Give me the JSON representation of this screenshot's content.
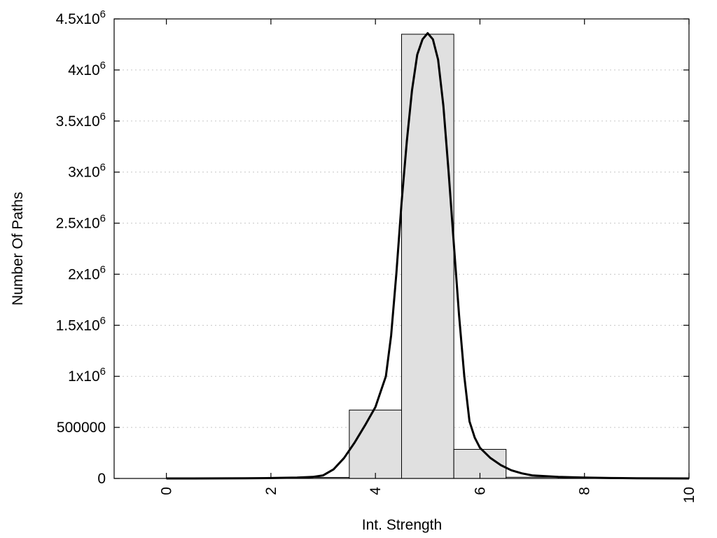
{
  "chart_data": {
    "type": "bar",
    "xlabel": "Int. Strength",
    "ylabel": "Number Of Paths",
    "xlim": [
      -1,
      10
    ],
    "ylim": [
      0,
      4500000
    ],
    "grid": true,
    "x_ticks": [
      {
        "value": 0,
        "label": "0"
      },
      {
        "value": 2,
        "label": "2"
      },
      {
        "value": 4,
        "label": "4"
      },
      {
        "value": 6,
        "label": "6"
      },
      {
        "value": 8,
        "label": "8"
      },
      {
        "value": 10,
        "label": "10"
      }
    ],
    "y_ticks": [
      {
        "value": 0,
        "label": "0",
        "mantissa": "0",
        "exp": ""
      },
      {
        "value": 500000,
        "label": "500000",
        "mantissa": "500000",
        "exp": ""
      },
      {
        "value": 1000000,
        "label": "1x10^6",
        "mantissa": "1x10",
        "exp": "6"
      },
      {
        "value": 1500000,
        "label": "1.5x10^6",
        "mantissa": "1.5x10",
        "exp": "6"
      },
      {
        "value": 2000000,
        "label": "2x10^6",
        "mantissa": "2x10",
        "exp": "6"
      },
      {
        "value": 2500000,
        "label": "2.5x10^6",
        "mantissa": "2.5x10",
        "exp": "6"
      },
      {
        "value": 3000000,
        "label": "3x10^6",
        "mantissa": "3x10",
        "exp": "6"
      },
      {
        "value": 3500000,
        "label": "3.5x10^6",
        "mantissa": "3.5x10",
        "exp": "6"
      },
      {
        "value": 4000000,
        "label": "4x10^6",
        "mantissa": "4x10",
        "exp": "6"
      },
      {
        "value": 4500000,
        "label": "4.5x10^6",
        "mantissa": "4.5x10",
        "exp": "6"
      }
    ],
    "bins": {
      "centers": [
        0,
        1,
        2,
        3,
        4,
        5,
        6,
        7,
        8,
        9
      ],
      "width": 1,
      "values": [
        0,
        0,
        1000,
        10000,
        670000,
        4350000,
        285000,
        12000,
        1000,
        0
      ]
    },
    "curve": {
      "x": [
        0,
        0.5,
        1,
        1.5,
        2,
        2.5,
        2.8,
        3.0,
        3.2,
        3.4,
        3.6,
        3.8,
        4.0,
        4.1,
        4.2,
        4.3,
        4.4,
        4.5,
        4.6,
        4.7,
        4.8,
        4.9,
        5.0,
        5.1,
        5.2,
        5.3,
        5.4,
        5.5,
        5.6,
        5.7,
        5.8,
        5.9,
        6.0,
        6.2,
        6.4,
        6.6,
        6.8,
        7.0,
        7.5,
        8.0,
        8.5,
        9.0,
        9.5,
        10.0
      ],
      "y": [
        0,
        0,
        1000,
        2000,
        4000,
        8000,
        15000,
        30000,
        90000,
        200000,
        350000,
        520000,
        700000,
        850000,
        1000000,
        1400000,
        2000000,
        2700000,
        3300000,
        3800000,
        4150000,
        4300000,
        4360000,
        4300000,
        4100000,
        3650000,
        3000000,
        2300000,
        1600000,
        1000000,
        560000,
        400000,
        300000,
        200000,
        130000,
        80000,
        50000,
        30000,
        15000,
        8000,
        4000,
        2000,
        1000,
        0
      ]
    }
  }
}
